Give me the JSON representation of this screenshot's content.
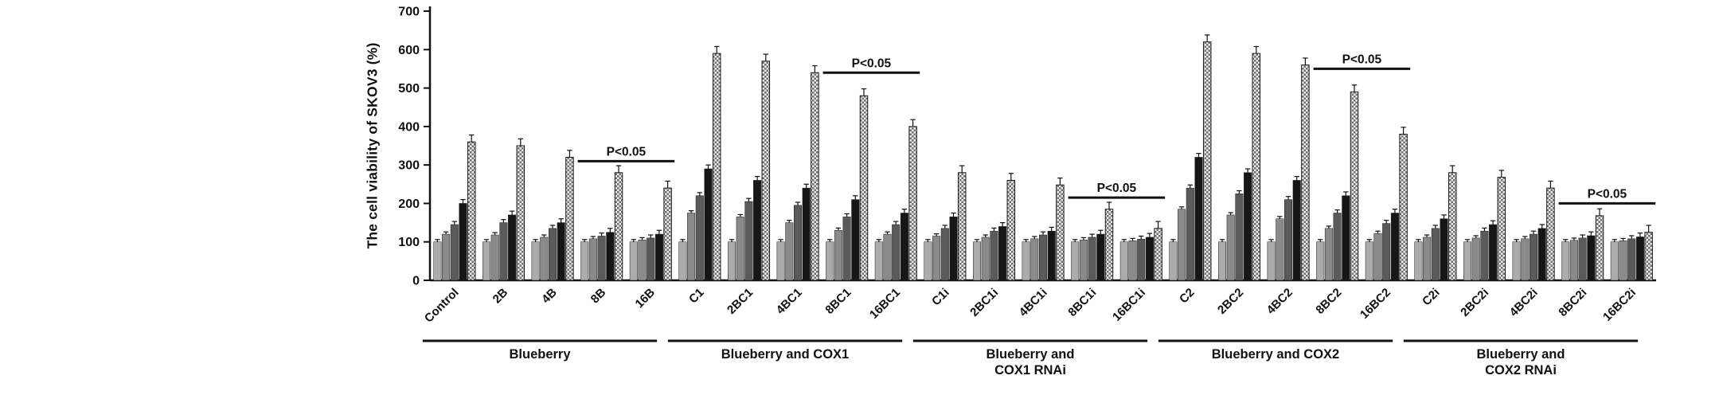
{
  "figure": {
    "background": "#ffffff"
  },
  "chart_data": {
    "type": "bar",
    "title": "",
    "xlabel": "",
    "ylabel": "The cell viability of SKOV3 (%)",
    "ylim": [
      0,
      700
    ],
    "yticks": [
      0,
      100,
      200,
      300,
      400,
      500,
      600,
      700
    ],
    "grid": false,
    "legend": "none",
    "categories": [
      "Control",
      "2B",
      "4B",
      "8B",
      "16B",
      "C1",
      "2BC1",
      "4BC1",
      "8BC1",
      "16BC1",
      "C1i",
      "2BC1i",
      "4BC1i",
      "8BC1i",
      "16BC1i",
      "C2",
      "2BC2",
      "4BC2",
      "8BC2",
      "16BC2",
      "C2i",
      "2BC2i",
      "4BC2i",
      "8BC2i",
      "16BC2i"
    ],
    "series": [
      {
        "name": "bar-1-light-gray",
        "fill": "#ababab",
        "error": 6,
        "values": [
          100,
          100,
          100,
          100,
          100,
          100,
          100,
          100,
          100,
          100,
          100,
          100,
          100,
          100,
          100,
          100,
          100,
          100,
          100,
          100,
          100,
          100,
          100,
          100,
          100
        ]
      },
      {
        "name": "bar-2-gray",
        "fill": "#8a8a8a",
        "error": 6,
        "values": [
          120,
          118,
          112,
          108,
          105,
          175,
          165,
          150,
          130,
          120,
          115,
          112,
          108,
          105,
          103,
          185,
          170,
          160,
          135,
          122,
          112,
          110,
          108,
          104,
          103
        ]
      },
      {
        "name": "bar-3-dark-gray",
        "fill": "#5a5a5a",
        "error": 8,
        "values": [
          145,
          150,
          135,
          115,
          110,
          220,
          205,
          195,
          165,
          145,
          135,
          128,
          118,
          112,
          107,
          240,
          225,
          210,
          175,
          148,
          135,
          128,
          120,
          110,
          108
        ]
      },
      {
        "name": "bar-4-black",
        "fill": "#161616",
        "error": 10,
        "values": [
          200,
          170,
          150,
          125,
          120,
          290,
          260,
          240,
          210,
          175,
          165,
          140,
          128,
          120,
          112,
          320,
          280,
          260,
          220,
          175,
          160,
          145,
          135,
          116,
          113
        ]
      },
      {
        "name": "bar-5-stippled",
        "fill": "pattern-stipple",
        "error": 18,
        "values": [
          360,
          350,
          320,
          280,
          240,
          590,
          570,
          540,
          480,
          400,
          280,
          260,
          248,
          185,
          135,
          620,
          590,
          560,
          490,
          380,
          280,
          268,
          240,
          168,
          125
        ]
      }
    ],
    "significance_markers": [
      {
        "label": "P<0.05",
        "from": "8B",
        "to": "16B",
        "line_y": 310
      },
      {
        "label": "P<0.05",
        "from": "8BC1",
        "to": "16BC1",
        "line_y": 540
      },
      {
        "label": "P<0.05",
        "from": "8BC1i",
        "to": "16BC1i",
        "line_y": 215
      },
      {
        "label": "P<0.05",
        "from": "8BC2",
        "to": "16BC2",
        "line_y": 550
      },
      {
        "label": "P<0.05",
        "from": "8BC2i",
        "to": "16BC2i",
        "line_y": 200
      }
    ],
    "group_brackets": [
      {
        "label_lines": [
          "Blueberry"
        ],
        "from": "Control",
        "to": "16B"
      },
      {
        "label_lines": [
          "Blueberry and COX1"
        ],
        "from": "C1",
        "to": "16BC1"
      },
      {
        "label_lines": [
          "Blueberry and",
          "COX1 RNAi"
        ],
        "from": "C1i",
        "to": "16BC1i"
      },
      {
        "label_lines": [
          "Blueberry and COX2"
        ],
        "from": "C2",
        "to": "16BC2"
      },
      {
        "label_lines": [
          "Blueberry and",
          "COX2 RNAi"
        ],
        "from": "C2i",
        "to": "16BC2i"
      }
    ]
  }
}
